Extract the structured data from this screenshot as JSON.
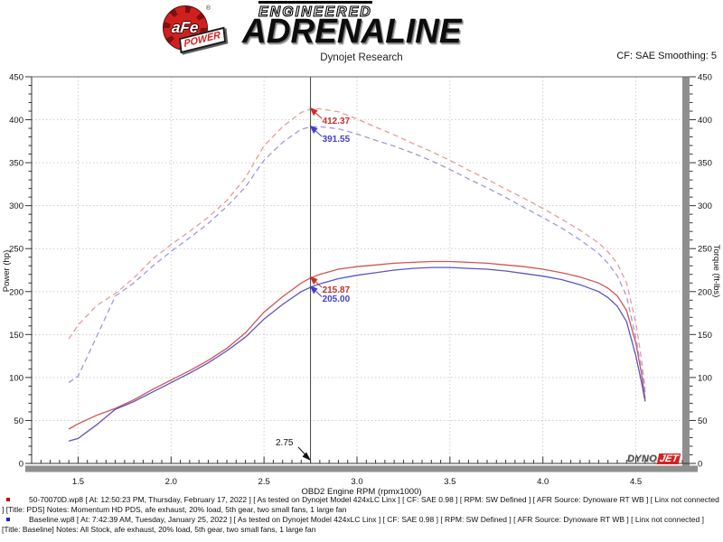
{
  "header": {
    "brand": {
      "afe": "aFe",
      "reg": "®",
      "power": "POWER",
      "engineered": "ENGINEERED",
      "adrenaline": "ADRENALINE"
    },
    "title": "Dynojet Research",
    "smoothing": "CF: SAE Smoothing: 5"
  },
  "chart_data": {
    "type": "line",
    "xlabel": "OBD2 Engine RPM (rpmx1000)",
    "ylabel_left": "Power (hp)",
    "ylabel_right": "Torque (ft-lbs)",
    "xlim": [
      1.25,
      4.75
    ],
    "ylim": [
      0,
      450
    ],
    "x_major_ticks": [
      1.5,
      2.0,
      2.5,
      3.0,
      3.5,
      4.0,
      4.5
    ],
    "y_major_ticks": [
      0,
      50,
      100,
      150,
      200,
      250,
      300,
      350,
      400,
      450
    ],
    "x_minor_step": 0.05,
    "y_minor_step": 10,
    "grid": "dotted",
    "x": [
      1.45,
      1.5,
      1.6,
      1.7,
      1.8,
      1.9,
      2.0,
      2.1,
      2.2,
      2.3,
      2.4,
      2.5,
      2.6,
      2.7,
      2.75,
      2.8,
      2.9,
      3.0,
      3.1,
      3.2,
      3.3,
      3.4,
      3.5,
      3.6,
      3.7,
      3.8,
      3.9,
      4.0,
      4.1,
      4.2,
      4.3,
      4.35,
      4.4,
      4.45,
      4.5,
      4.53,
      4.55
    ],
    "series": [
      {
        "name": "PDS Power (hp)",
        "style": "solid",
        "color": "#d05550",
        "axis": "left",
        "values": [
          40,
          46,
          56,
          64,
          74,
          86,
          97,
          108,
          120,
          134,
          152,
          176,
          194,
          210,
          215.87,
          220,
          226,
          229,
          231,
          233,
          234,
          235,
          235,
          234,
          233,
          231,
          229,
          226,
          222,
          217,
          210,
          204,
          195,
          178,
          140,
          105,
          75
        ]
      },
      {
        "name": "Baseline Power (hp)",
        "style": "solid",
        "color": "#5a55c4",
        "axis": "left",
        "values": [
          26,
          29,
          45,
          63,
          72,
          83,
          94,
          105,
          117,
          131,
          147,
          168,
          185,
          200,
          205.0,
          209,
          215,
          219,
          222,
          225,
          227,
          228,
          228,
          227,
          226,
          224,
          221,
          218,
          214,
          208,
          200,
          193,
          183,
          165,
          125,
          95,
          72
        ]
      },
      {
        "name": "PDS Torque (ft-lbs)",
        "style": "dashed",
        "color": "#e79b96",
        "axis": "right",
        "values": [
          144.9,
          161.1,
          183.8,
          197.7,
          215.9,
          237.7,
          254.7,
          270.1,
          286.5,
          306.0,
          332.6,
          369.7,
          391.9,
          408.5,
          412.37,
          412.7,
          409.3,
          400.9,
          391.4,
          382.4,
          372.4,
          363.0,
          352.6,
          341.4,
          330.7,
          319.3,
          308.4,
          296.7,
          284.4,
          271.4,
          256.5,
          246.3,
          232.8,
          210.1,
          163.4,
          121.7,
          86.6
        ]
      },
      {
        "name": "Baseline Torque (ft-lbs)",
        "style": "dashed",
        "color": "#9d99de",
        "axis": "right",
        "values": [
          94.2,
          101.5,
          147.7,
          194.6,
          210.1,
          229.4,
          246.8,
          262.6,
          279.3,
          299.1,
          321.7,
          352.9,
          373.7,
          389.0,
          391.55,
          392.0,
          389.4,
          383.4,
          376.1,
          369.3,
          361.3,
          352.2,
          342.1,
          331.2,
          320.8,
          309.6,
          297.6,
          286.2,
          274.1,
          260.1,
          244.3,
          233.0,
          218.4,
          194.7,
          145.9,
          110.1,
          83.1
        ]
      }
    ],
    "cursor": {
      "rpm": 2.75,
      "label": "2.75"
    },
    "callouts": [
      {
        "label": "412.37",
        "value": 412.37,
        "series": "PDS Torque (ft-lbs)",
        "color": "#c2322b"
      },
      {
        "label": "391.55",
        "value": 391.55,
        "series": "Baseline Torque (ft-lbs)",
        "color": "#4340c4"
      },
      {
        "label": "215.87",
        "value": 215.87,
        "series": "PDS Power (hp)",
        "color": "#c2322b"
      },
      {
        "label": "205.00",
        "value": 205.0,
        "series": "Baseline Power (hp)",
        "color": "#4340c4"
      }
    ]
  },
  "watermark": {
    "dyno": "DYNO",
    "jet": "JET"
  },
  "legend": {
    "runs": [
      {
        "bullet_color": "#cc0000",
        "text": "50-70070D.wp8 [ At: 12:50:23 PM, Thursday, February 17, 2022 ] [ As tested on Dynojet Model 424xLC Linx ] [ CF: SAE 0.98 ] [ RPM: SW Defined ] [ AFR Source: Dynoware RT WB ] [ Linx not connected ] [Title: PDS]  Notes: Momentum HD PDS, afe exhaust, 20% load, 5th gear, two small fans, 1 large fan"
      },
      {
        "bullet_color": "#2222cc",
        "text": "Baseline.wp8 [ At: 7:42:39 AM, Tuesday, January 25, 2022 ] [ As tested on Dynojet Model 424xLC Linx ] [ CF: SAE 0.98 ] [ RPM: SW Defined ] [ AFR Source: Dynoware RT WB ] [ Linx not connected ] [Title: Baseline]  Notes: All Stock, afe exhaust, 20% load, 5th gear, two small fans, 1 large fan"
      }
    ]
  }
}
